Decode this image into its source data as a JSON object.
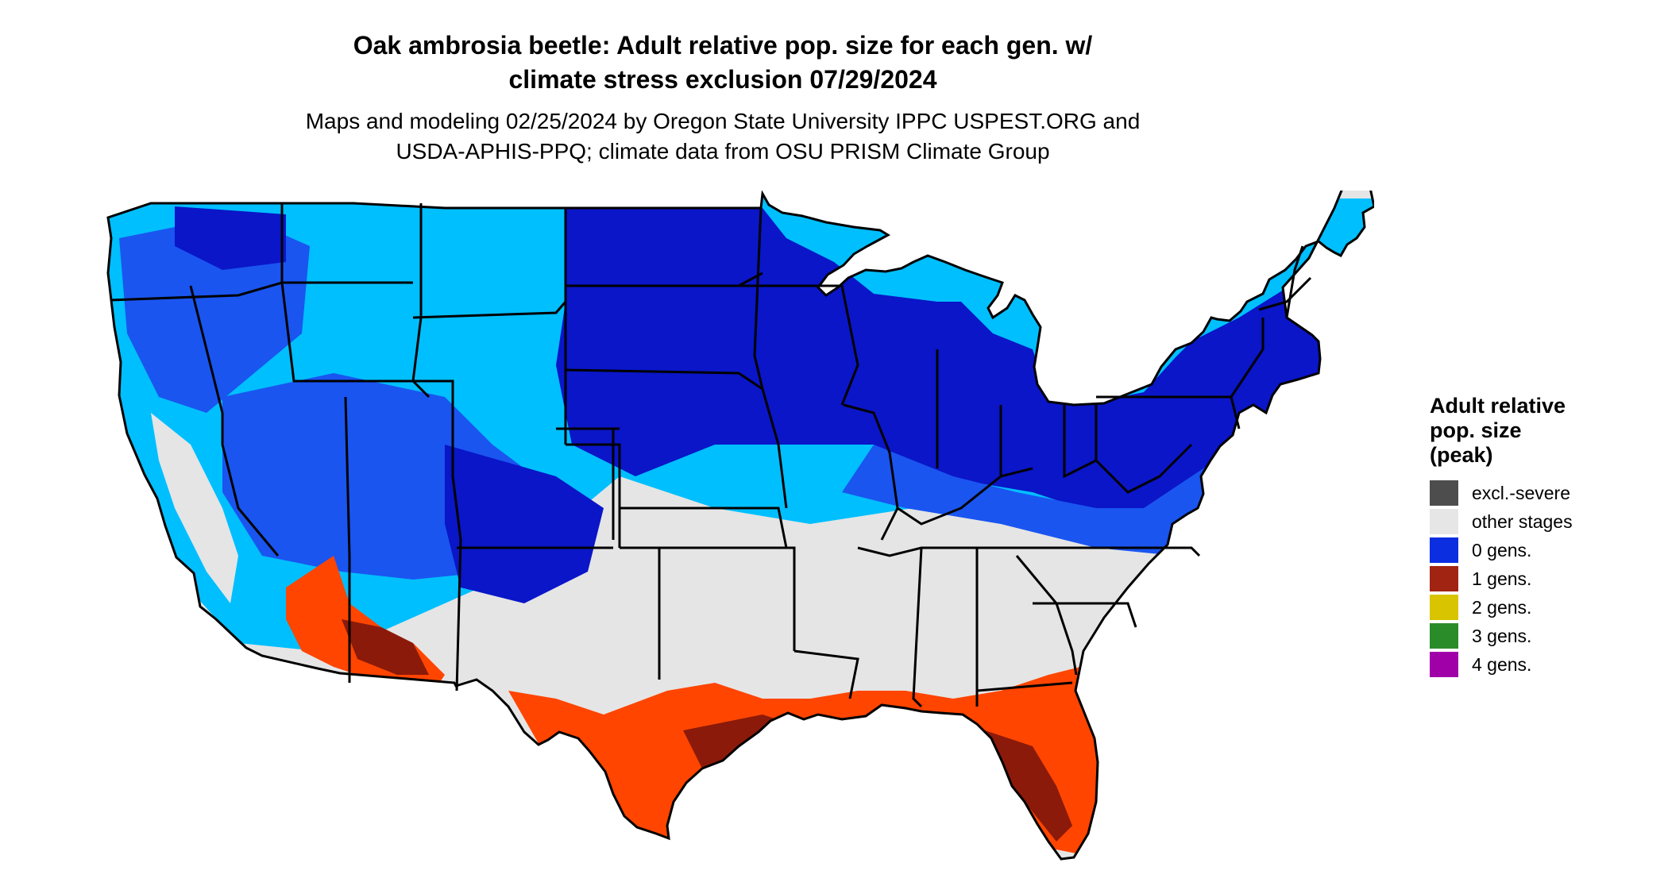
{
  "title_line1": "Oak ambrosia beetle: Adult relative pop. size for each gen. w/",
  "title_line2": "climate stress exclusion 07/29/2024",
  "subtitle_line1": "Maps and modeling 02/25/2024 by Oregon State University IPPC USPEST.ORG and",
  "subtitle_line2": "USDA-APHIS-PPQ; climate data from OSU PRISM Climate Group",
  "legend": {
    "title_line1": "Adult relative",
    "title_line2": "pop. size",
    "title_line3": "(peak)",
    "items": [
      {
        "label": "excl.-severe",
        "color": "#4d4d4d"
      },
      {
        "label": "other stages",
        "color": "#e6e6e6"
      },
      {
        "label": "0 gens.",
        "color": "#0a2ee0"
      },
      {
        "label": "1 gens.",
        "color": "#a12312"
      },
      {
        "label": "2 gens.",
        "color": "#d8c400"
      },
      {
        "label": "3 gens.",
        "color": "#2a8c28"
      },
      {
        "label": "4 gens.",
        "color": "#a000a8"
      }
    ]
  },
  "map_colors": {
    "land_other": "#e5e5e5",
    "light_blue": "#00bfff",
    "mid_blue": "#1a55f0",
    "deep_blue": "#0a16c8",
    "orange_red": "#ff4500",
    "dark_red": "#8b1a0a",
    "border": "#000000"
  }
}
